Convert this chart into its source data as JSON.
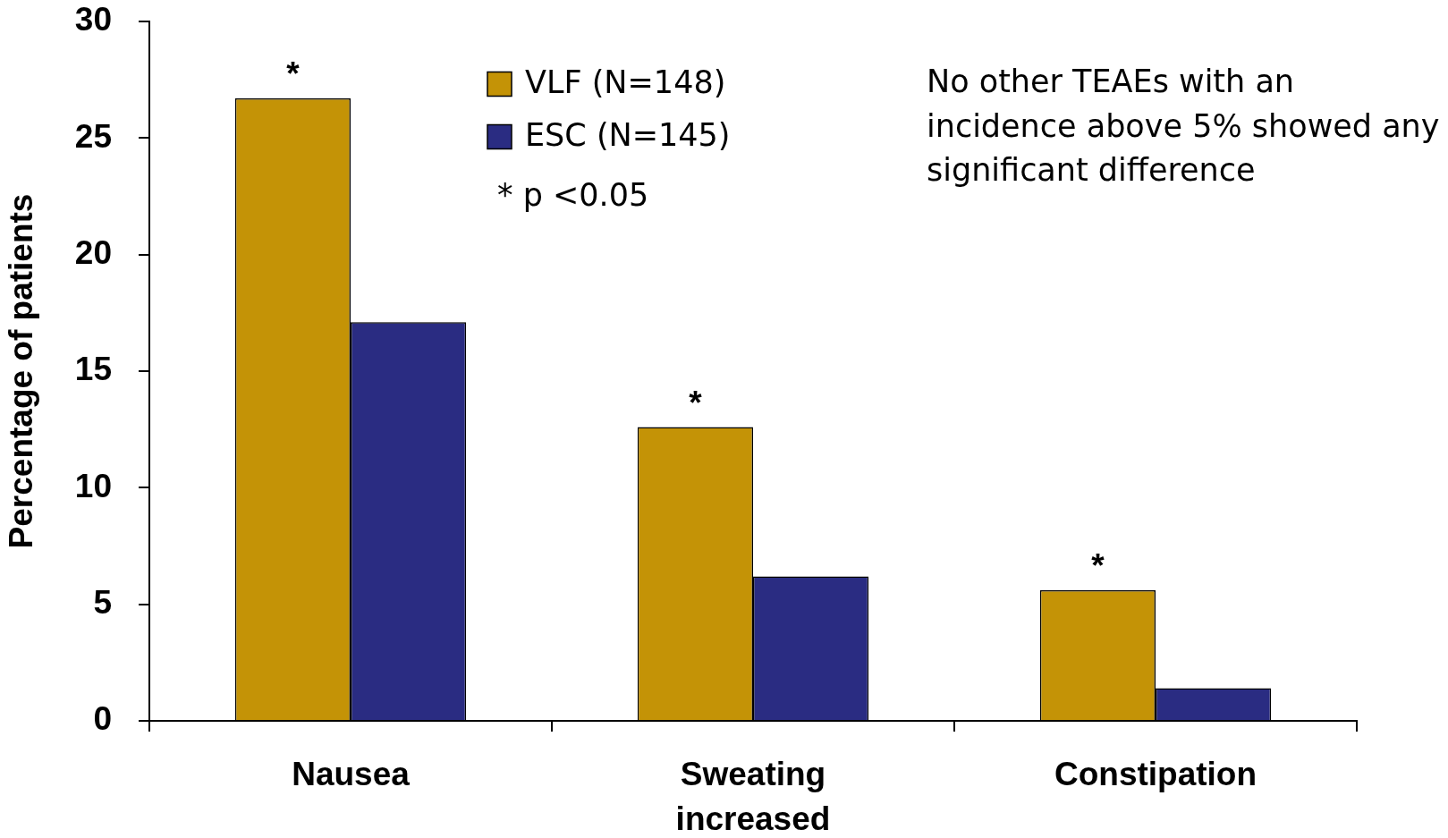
{
  "chart_data": {
    "type": "bar",
    "ylabel": "Percentage of patients",
    "categories": [
      "Nausea",
      "Sweating increased",
      "Constipation"
    ],
    "series": [
      {
        "name": "VLF (N=148)",
        "color": "#c49306",
        "values": [
          26.7,
          12.6,
          5.6
        ]
      },
      {
        "name": "ESC (N=145)",
        "color": "#2a2c82",
        "values": [
          17.1,
          6.2,
          1.4
        ]
      }
    ],
    "ylim": [
      0,
      30
    ],
    "yticks": [
      0,
      5,
      10,
      15,
      20,
      25,
      30
    ],
    "grid": false,
    "legend": "top",
    "annotations": [
      {
        "text": "*",
        "x": "Nausea",
        "y": 26.7
      },
      {
        "text": "*",
        "x": "Sweating increased",
        "y": 12.6
      },
      {
        "text": "*",
        "x": "Constipation",
        "y": 5.6
      },
      "* p <0.05",
      "No other TEAEs with an incidence above 5% showed any significant difference"
    ]
  }
}
